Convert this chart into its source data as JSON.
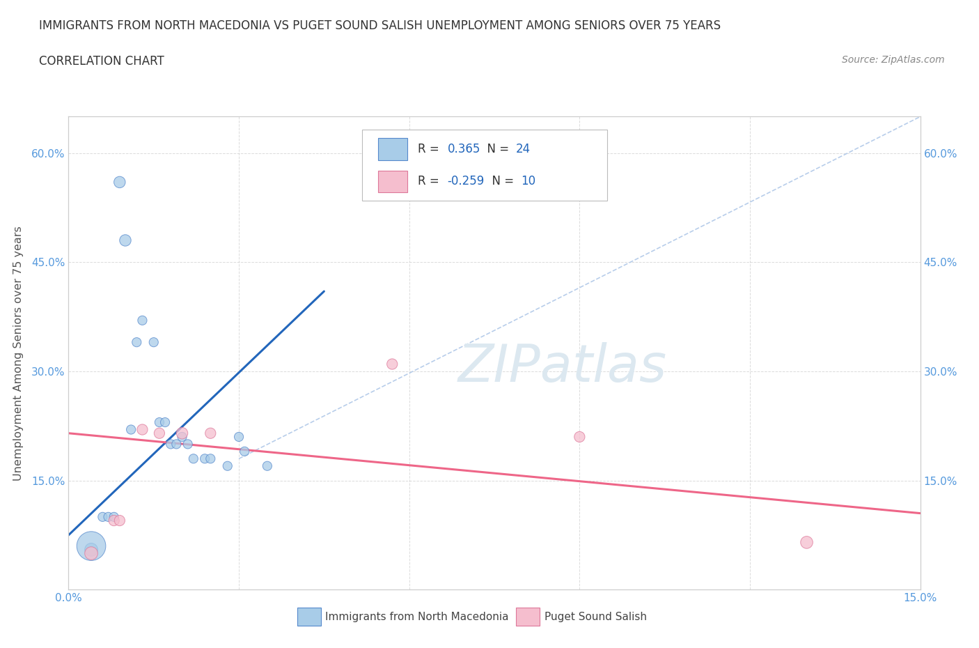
{
  "title_line1": "IMMIGRANTS FROM NORTH MACEDONIA VS PUGET SOUND SALISH UNEMPLOYMENT AMONG SENIORS OVER 75 YEARS",
  "title_line2": "CORRELATION CHART",
  "source_text": "Source: ZipAtlas.com",
  "ylabel": "Unemployment Among Seniors over 75 years",
  "x_min": 0.0,
  "x_max": 0.15,
  "y_min": 0.0,
  "y_max": 0.65,
  "x_ticks": [
    0.0,
    0.03,
    0.06,
    0.09,
    0.12,
    0.15
  ],
  "x_tick_labels": [
    "0.0%",
    "",
    "",
    "",
    "",
    "15.0%"
  ],
  "y_ticks": [
    0.0,
    0.15,
    0.3,
    0.45,
    0.6
  ],
  "y_tick_labels": [
    "",
    "15.0%",
    "30.0%",
    "45.0%",
    "60.0%"
  ],
  "blue_R": 0.365,
  "blue_N": 24,
  "pink_R": -0.259,
  "pink_N": 10,
  "blue_scatter_x": [
    0.004,
    0.009,
    0.01,
    0.011,
    0.012,
    0.013,
    0.015,
    0.016,
    0.017,
    0.018,
    0.019,
    0.02,
    0.021,
    0.022,
    0.024,
    0.025,
    0.028,
    0.03,
    0.031,
    0.035,
    0.004,
    0.006,
    0.007,
    0.008
  ],
  "blue_scatter_y": [
    0.055,
    0.56,
    0.48,
    0.22,
    0.34,
    0.37,
    0.34,
    0.23,
    0.23,
    0.2,
    0.2,
    0.21,
    0.2,
    0.18,
    0.18,
    0.18,
    0.17,
    0.21,
    0.19,
    0.17,
    0.06,
    0.1,
    0.1,
    0.1
  ],
  "blue_scatter_size": [
    180,
    140,
    140,
    90,
    90,
    90,
    90,
    90,
    90,
    90,
    90,
    90,
    90,
    90,
    90,
    90,
    90,
    90,
    90,
    90,
    900,
    90,
    90,
    90
  ],
  "pink_scatter_x": [
    0.004,
    0.008,
    0.013,
    0.02,
    0.025,
    0.057,
    0.09,
    0.13,
    0.009,
    0.016
  ],
  "pink_scatter_y": [
    0.05,
    0.095,
    0.22,
    0.215,
    0.215,
    0.31,
    0.21,
    0.065,
    0.095,
    0.215
  ],
  "pink_scatter_size": [
    180,
    120,
    120,
    140,
    120,
    120,
    120,
    160,
    120,
    120
  ],
  "blue_line_x": [
    0.0,
    0.045
  ],
  "blue_line_y": [
    0.075,
    0.41
  ],
  "pink_line_x": [
    0.0,
    0.15
  ],
  "pink_line_y": [
    0.215,
    0.105
  ],
  "trend_line_x": [
    0.03,
    0.15
  ],
  "trend_line_y": [
    0.18,
    0.65
  ],
  "blue_color": "#a8cce8",
  "pink_color": "#f5bece",
  "blue_edge_color": "#5588cc",
  "pink_edge_color": "#dd7799",
  "blue_line_color": "#2266bb",
  "pink_line_color": "#ee6688",
  "trend_line_color": "#b0c8e8",
  "bg_color": "#ffffff",
  "watermark_text": "ZIPatlas",
  "watermark_color": "#dce8f0",
  "grid_color": "#cccccc",
  "tick_color": "#5599dd",
  "title_color": "#333333",
  "ylabel_color": "#555555",
  "source_color": "#888888"
}
